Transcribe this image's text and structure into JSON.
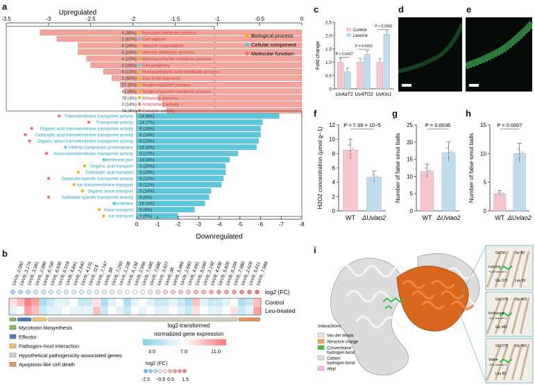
{
  "panel_labels": {
    "a": "a",
    "b": "b",
    "c": "c",
    "d": "d",
    "e": "e",
    "f": "f",
    "g": "g",
    "h": "h",
    "i": "i"
  },
  "colors": {
    "upregulated_bar": "#f4a49a",
    "downregulated_bar": "#5bc8de",
    "bio": "#f2b318",
    "cell": "#5bc8de",
    "mol": "#ef6b6b",
    "control_bar": "#f7c6cf",
    "leucine_bar": "#bfdcef",
    "protein_orange": "#d9681e"
  },
  "panel_a": {
    "up_title": "Upregulated",
    "down_title": "Downregulated",
    "legend": [
      {
        "label": "Biological process",
        "color": "#f2b318"
      },
      {
        "label": "Cellular component",
        "color": "#5bc8de"
      },
      {
        "label": "Molecular function",
        "color": "#ef6b6b"
      }
    ],
    "chart_data": {
      "type": "bar",
      "top_axis": {
        "ticks": [
          "-3.5",
          "-3",
          "-2.5",
          "-2",
          "-1.5",
          "-1",
          "-0.5",
          "0"
        ],
        "min": -3.5,
        "max": 0
      },
      "bottom_axis": {
        "ticks": [
          "0",
          "-1",
          "-2",
          "-3",
          "-4",
          "-5",
          "-6",
          "-7",
          "-8"
        ],
        "min": 0,
        "max": -8
      },
      "up": [
        {
          "term": "Pyruvate metabolic process",
          "count": "4 (36%)",
          "value": -3.1,
          "cat": "bio"
        },
        {
          "term": "Cell septum",
          "count": "2 (67%)",
          "value": -2.9,
          "cat": "cell"
        },
        {
          "term": "Vacuole organization",
          "count": "4 (24%)",
          "value": -2.65,
          "cat": "bio"
        },
        {
          "term": "Hexose metabolic process",
          "count": "4 (24%)",
          "value": -2.65,
          "cat": "bio"
        },
        {
          "term": "Monosaccharide metabolic process",
          "count": "4 (22%)",
          "value": -2.55,
          "cat": "bio"
        },
        {
          "term": "Cell periphery",
          "count": "3 (33%)",
          "value": -2.5,
          "cat": "cell"
        },
        {
          "term": "Monocarboxylic acid metabolic process",
          "count": "6 (13%)",
          "value": -2.35,
          "cat": "bio"
        },
        {
          "term": "Zinc II ion transport",
          "count": "2 (50%)",
          "value": -2.25,
          "cat": "bio"
        },
        {
          "term": "Single-organism process",
          "count": "57 (5%)",
          "value": -2.15,
          "cat": "bio"
        },
        {
          "term": "Single-organism metabolic process",
          "count": "41 (6%)",
          "value": -2.1,
          "cat": "bio"
        },
        {
          "term": "Metabolic process",
          "count": "78 (4%)",
          "value": -1.7,
          "cat": "bio"
        },
        {
          "term": "Antioxidant activity",
          "count": "3 (14%)",
          "value": -1.65,
          "cat": "mol"
        },
        {
          "term": "Catalytic activity",
          "count": "74 (4%)",
          "value": -1.6,
          "cat": "mol"
        }
      ],
      "down": [
        {
          "term": "Transmembrane transporter activity",
          "count": "14 (6%)",
          "value": -6.9,
          "cat": "mol"
        },
        {
          "term": "Transporter activity",
          "count": "14 (7%)",
          "value": -6.1,
          "cat": "mol"
        },
        {
          "term": "Organic acid transmembrane transporter activity",
          "count": "6 (24%)",
          "value": -6.0,
          "cat": "mol"
        },
        {
          "term": "Carboxylic acid transmembrane transporter activity",
          "count": "6 (24%)",
          "value": -6.0,
          "cat": "mol"
        },
        {
          "term": "Organic anion transmembrane transporter activity",
          "count": "6 (23%)",
          "value": -5.9,
          "cat": "mol"
        },
        {
          "term": "Intrinsic component of membrane",
          "count": "16 (4%)",
          "value": -5.8,
          "cat": "cell"
        },
        {
          "term": "Anion transmembrane transporter activity",
          "count": "5 (17%)",
          "value": -4.9,
          "cat": "mol"
        },
        {
          "term": "Membrane part",
          "count": "16 (4%)",
          "value": -4.5,
          "cat": "cell"
        },
        {
          "term": "Organic acid transport",
          "count": "5 (20%)",
          "value": -4.3,
          "cat": "bio"
        },
        {
          "term": "Carboxylic acid transport",
          "count": "5 (20%)",
          "value": -4.3,
          "cat": "bio"
        },
        {
          "term": "Substrate-specific transporter activity",
          "count": "9 (11%)",
          "value": -4.2,
          "cat": "mol"
        },
        {
          "term": "Ion transmembrane transport",
          "count": "8 (12%)",
          "value": -4.1,
          "cat": "bio"
        },
        {
          "term": "Organic anion transport",
          "count": "5 (14%)",
          "value": -3.6,
          "cat": "bio"
        },
        {
          "term": "Substrate-specific transporter activity",
          "count": "9 (9%)",
          "value": -3.5,
          "cat": "mol"
        },
        {
          "term": "Membrane",
          "count": "16 (3%)",
          "value": -3.3,
          "cat": "cell"
        },
        {
          "term": "Anion transport",
          "count": "5 (9%)",
          "value": -2.8,
          "cat": "bio"
        },
        {
          "term": "Ion transport",
          "count": "7 (5%)",
          "value": -2.0,
          "cat": "bio"
        }
      ]
    }
  },
  "panel_b": {
    "genes": [
      "UvVb_2,082",
      "UvVb_3,174",
      "UvVb_3,381",
      "UvVb_2,986",
      "UvVb_6,700",
      "UvVb_6,936",
      "UvVb_6,518",
      "UvVb_4,841",
      "UvVb_2,642",
      "UvVb_4,101",
      "UvVb_319",
      "UvVb_7,747",
      "UvVb_88",
      "UvVb_7,250",
      "UvVb_2,108",
      "UvVb_6,192",
      "UvVb_2,956",
      "UvVb_7,685",
      "UvVb_7,686",
      "UvVb_3,927",
      "UvVb_38",
      "UvVb_5,466",
      "UvVb_2,840",
      "UvVb_4,491",
      "UvVb_8,040",
      "UvVb_2,192",
      "UvVb_4,436",
      "UvVb_5,826",
      "UvVb_6,204",
      "UvVb_7,980",
      "UvVb_2,628",
      "UvVb_5,611",
      "UvVb_7,968"
    ],
    "logfc_label": "log2 (FC)",
    "row_labels": [
      "Control",
      "Leu-treated"
    ],
    "logfc_values": [
      -1.5,
      -1.2,
      -1.0,
      -0.8,
      -0.8,
      -0.7,
      -0.6,
      -0.6,
      -0.5,
      -0.5,
      -0.4,
      -0.4,
      -0.3,
      -0.3,
      -0.3,
      -0.2,
      -0.2,
      -0.1,
      0.1,
      0.2,
      0.3,
      0.4,
      0.5,
      0.5,
      0.6,
      0.7,
      0.8,
      0.9,
      1.0,
      1.0,
      1.2,
      1.3,
      1.5
    ],
    "control_values": [
      8,
      9,
      11,
      10,
      4,
      5,
      6,
      6,
      7,
      5,
      5,
      8,
      4,
      6,
      7,
      4,
      6,
      7,
      6,
      5,
      5,
      6,
      5,
      4,
      9,
      6,
      5,
      5,
      6,
      7,
      4,
      5,
      9
    ],
    "leu_values": [
      6,
      7,
      10,
      9,
      5,
      6,
      6,
      7,
      6,
      6,
      6,
      9,
      5,
      7,
      6,
      5,
      7,
      6,
      7,
      6,
      6,
      7,
      6,
      5,
      8,
      7,
      6,
      6,
      7,
      8,
      5,
      6,
      10
    ],
    "categories": [
      {
        "label": "Mycotoxin biosynthesis",
        "color": "#7dbb5a"
      },
      {
        "label": "Effector",
        "color": "#4a7ab8"
      },
      {
        "label": "Pathogen–host interaction",
        "color": "#f2c46b"
      },
      {
        "label": "Hypothetical pathogenicity-associated genes",
        "color": "#d8d0c4"
      },
      {
        "label": "Apoptosis-like cell death",
        "color": "#e9955a"
      }
    ],
    "gene_categories": [
      0,
      1,
      1,
      2,
      2,
      3,
      3,
      3,
      3,
      3,
      3,
      3,
      3,
      3,
      3,
      3,
      3,
      3,
      3,
      3,
      3,
      3,
      3,
      3,
      3,
      3,
      3,
      3,
      3,
      3,
      4,
      4,
      4
    ],
    "colorbar_title": "log2-transformed\nnormalized gene expression",
    "colorbar_ticks": [
      "3.0",
      "7.0",
      "11.0"
    ],
    "fc_legend_title": "log2 (FC)",
    "fc_legend_ticks": [
      "-2.5",
      "-0.5",
      "0.5",
      "1.5"
    ]
  },
  "panel_c": {
    "ylabel": "Fold change",
    "legend": [
      "Control",
      "Leucine"
    ],
    "chart_data": {
      "type": "bar",
      "categories": [
        "UvAaT1",
        "UvATO2",
        "UvKm1"
      ],
      "series": [
        {
          "name": "Control",
          "values": [
            1.0,
            1.0,
            1.0
          ]
        },
        {
          "name": "Leucine",
          "values": [
            0.65,
            1.3,
            2.05
          ]
        }
      ],
      "ylim": [
        0,
        2.5
      ],
      "yticks": [
        "0",
        "0.5",
        "1.0",
        "1.5",
        "2.0",
        "2.5"
      ],
      "pvalues": [
        "P = 0.0437",
        "P = 0.0262",
        "P = 0.0050"
      ]
    }
  },
  "panel_f": {
    "ylabel": "H2O2 concentration (μmol g−1)",
    "pvalue": "P = 7.39 × 10−5",
    "chart_data": {
      "type": "bar",
      "categories": [
        "WT",
        "ΔUvlao2"
      ],
      "values": [
        8.5,
        4.7
      ],
      "ylim": [
        0,
        12
      ],
      "yticks": [
        "0",
        "2",
        "4",
        "6",
        "8",
        "10",
        "12"
      ]
    }
  },
  "panel_g": {
    "ylabel": "Number of false smut balls",
    "pvalue": "P = 0.0036",
    "chart_data": {
      "type": "bar",
      "categories": [
        "WT",
        "ΔUvlao2"
      ],
      "values": [
        11.5,
        17
      ],
      "ylim": [
        0,
        25
      ],
      "yticks": [
        "0",
        "5",
        "10",
        "15",
        "20",
        "25"
      ]
    }
  },
  "panel_h": {
    "ylabel": "Number of false smut balls",
    "pvalue": "P = 0.0007",
    "chart_data": {
      "type": "bar",
      "categories": [
        "WT",
        "ΔUvlao2"
      ],
      "values": [
        3,
        10
      ],
      "ylim": [
        0,
        15
      ],
      "yticks": [
        "0",
        "5",
        "10",
        "15"
      ]
    }
  },
  "panel_i": {
    "legend_title": "Interactions",
    "legend": [
      {
        "label": "Van der Waals",
        "color": "#e8ead2"
      },
      {
        "label": "Attractive charge",
        "color": "#f2a35a"
      },
      {
        "label": "Conventional hydrogen bond",
        "color": "#3ec43e"
      },
      {
        "label": "Carbon hydrogen bond",
        "color": "#cfe9c9"
      },
      {
        "label": "Alkyl",
        "color": "#f2b5e9"
      }
    ],
    "insets": [
      {
        "title": "Leucine",
        "energy": "−6.26 kcal mol−1",
        "res": [
          "Gln 90",
          "Tyr 89",
          "Glu 375",
          "Leu 80"
        ]
      },
      {
        "title": "Isoleucine",
        "energy": "−6.17 kcal mol−1",
        "res": [
          "Glu 375",
          "Gly 462",
          "Gly 461"
        ]
      },
      {
        "title": "Valine",
        "energy": "−5.61 kcal mol−1",
        "res": [
          "Glu 375",
          "Gly 461",
          "Leu 80"
        ]
      }
    ]
  }
}
